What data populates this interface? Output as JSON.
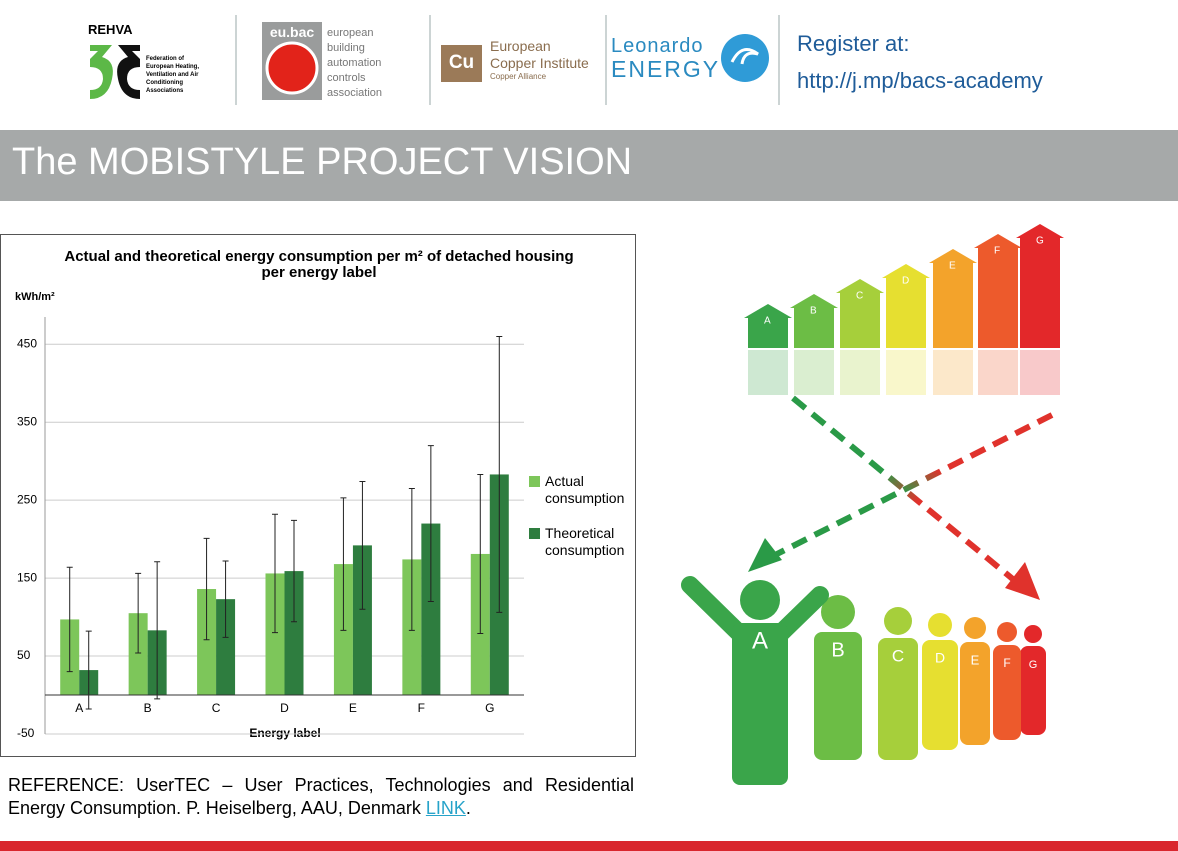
{
  "header": {
    "rehva": {
      "name": "REHVA",
      "tagline": "Federation of European Heating, Ventilation and Air Conditioning Associations"
    },
    "eubac": {
      "name": "eu.bac",
      "lines": [
        "european",
        "building",
        "automation",
        "controls",
        "association"
      ]
    },
    "copper": {
      "symbol": "Cu",
      "lines": [
        "European",
        "Copper Institute"
      ],
      "sub": "Copper Alliance"
    },
    "leonardo": {
      "line1": "Leonardo",
      "line2": "ENERGY"
    },
    "register": {
      "label": "Register at:",
      "url": "http://j.mp/bacs-academy"
    }
  },
  "banner": {
    "title": "The MOBISTYLE PROJECT VISION"
  },
  "chart_data": {
    "type": "bar",
    "title": [
      "Actual and theoretical energy consumption per m² of detached housing",
      "per energy label"
    ],
    "y_label": "kWh/m²",
    "x_label": "Energy label",
    "categories": [
      "A",
      "B",
      "C",
      "D",
      "E",
      "F",
      "G"
    ],
    "series": [
      {
        "name": "Actual consumption",
        "color": "#7dc65a",
        "values": [
          97,
          105,
          136,
          156,
          168,
          174,
          181
        ],
        "errors": [
          67,
          51,
          65,
          76,
          85,
          91,
          102
        ]
      },
      {
        "name": "Theoretical consumption",
        "color": "#2e7d3f",
        "values": [
          32,
          83,
          123,
          159,
          192,
          220,
          283
        ],
        "errors": [
          50,
          88,
          49,
          65,
          82,
          100,
          177
        ]
      }
    ],
    "ylim": [
      -50,
      485
    ],
    "yticks": [
      -50,
      50,
      150,
      250,
      350,
      450
    ],
    "grid": true,
    "legend": "right"
  },
  "illustration": {
    "houses": [
      "A",
      "B",
      "C",
      "D",
      "E",
      "F",
      "G"
    ],
    "people": [
      "A",
      "B",
      "C",
      "D",
      "E",
      "F",
      "G"
    ]
  },
  "reference": {
    "text": "REFERENCE: UserTEC – User Practices, Technologies and Residential Energy Consumption. P. Heiselberg, AAU, Denmark ",
    "link": "LINK",
    "end": "."
  }
}
